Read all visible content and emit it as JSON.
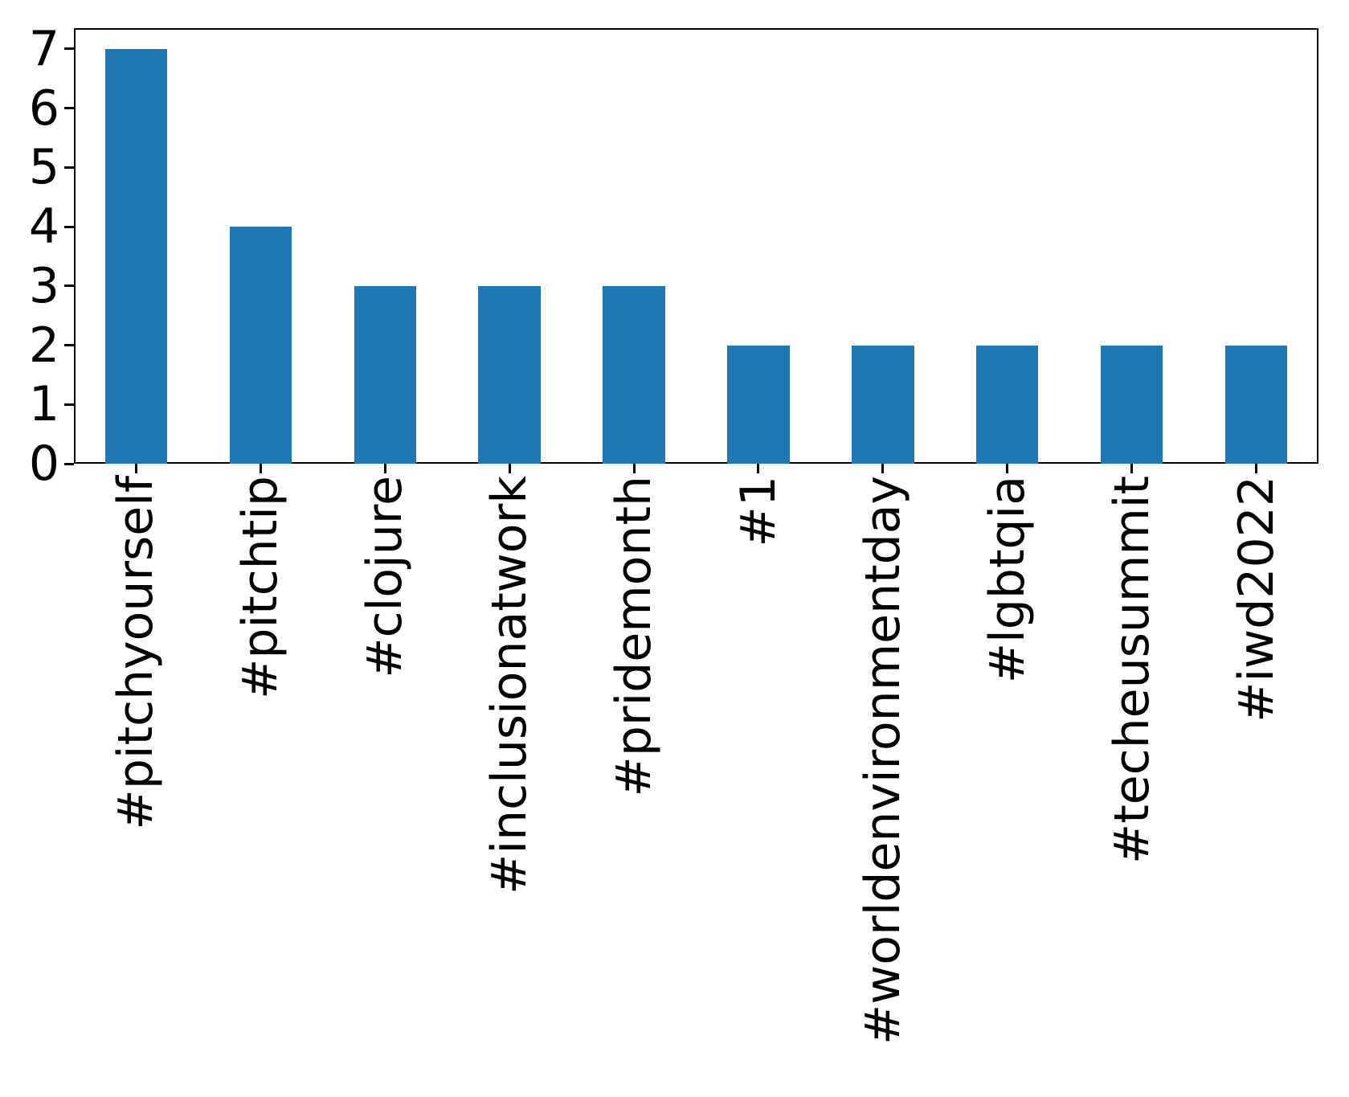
{
  "chart_data": {
    "type": "bar",
    "categories": [
      "#pitchyourself",
      "#pitchtip",
      "#clojure",
      "#inclusionatwork",
      "#pridemonth",
      "#1",
      "#worldenvironmentday",
      "#lgbtqia",
      "#techeusummit",
      "#iwd2022"
    ],
    "values": [
      7,
      4,
      3,
      3,
      3,
      2,
      2,
      2,
      2,
      2
    ],
    "title": "",
    "xlabel": "",
    "ylabel": "",
    "ylim": [
      0,
      7.35
    ],
    "yticks": [
      "0",
      "1",
      "2",
      "3",
      "4",
      "5",
      "6",
      "7"
    ],
    "x_tick_rotation": 90,
    "grid": false,
    "legend_position": "none",
    "bar_color": "#1f77b4",
    "axis_color": "#000000",
    "background_color": "#ffffff"
  }
}
